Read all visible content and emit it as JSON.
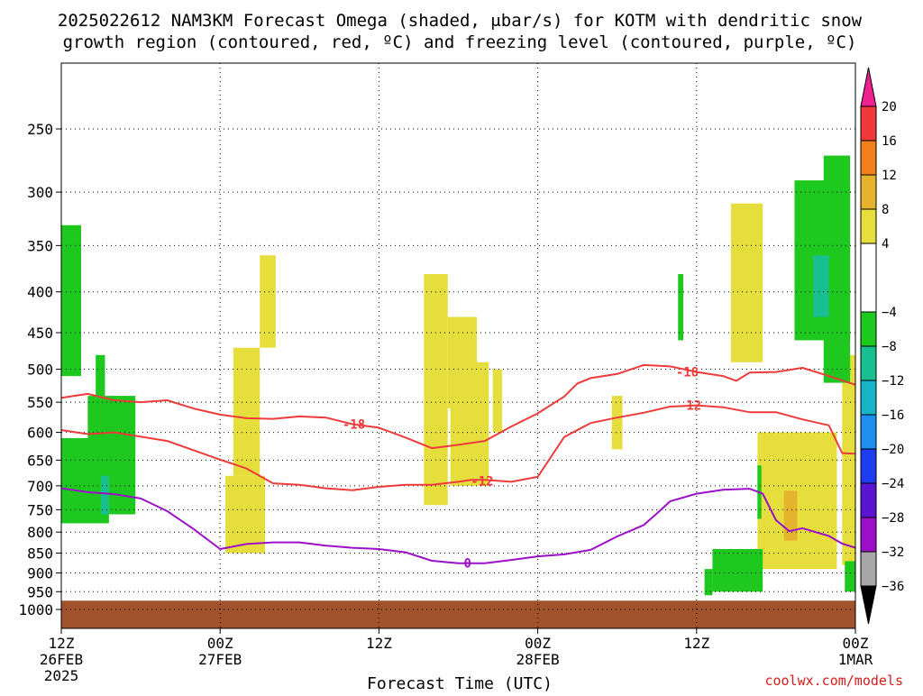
{
  "title": {
    "line1": "2025022612 NAM3KM Forecast Omega (shaded, μbar/s) for KOTM with dendritic snow",
    "line2": "growth region (contoured, red, ºC) and freezing level (contoured, purple, ºC)"
  },
  "credit": "coolwx.com/models",
  "colors": {
    "ground": "#a0522d",
    "temp_contour": "#ee3b3b",
    "freezing_contour": "#9b10c8",
    "grid": "#000000",
    "credit": "#d81b1b"
  },
  "chart_data": {
    "type": "heatmap",
    "title": "2025022612 NAM3KM Forecast Omega (shaded, μbar/s) for KOTM with dendritic snow growth region (contoured, red, ºC) and freezing level (contoured, purple, ºC)",
    "xlabel": "Forecast Time (UTC)",
    "ylabel": "",
    "xlim": [
      0,
      60
    ],
    "ylim": [
      1000,
      200
    ],
    "y_scale": "log-pressure",
    "grid": true,
    "x_ticks": [
      {
        "hour": 0,
        "line1": "12Z",
        "line2": "26FEB",
        "line3": "2025"
      },
      {
        "hour": 12,
        "line1": "00Z",
        "line2": "27FEB",
        "line3": ""
      },
      {
        "hour": 24,
        "line1": "12Z",
        "line2": "",
        "line3": ""
      },
      {
        "hour": 36,
        "line1": "00Z",
        "line2": "28FEB",
        "line3": ""
      },
      {
        "hour": 48,
        "line1": "12Z",
        "line2": "",
        "line3": ""
      },
      {
        "hour": 60,
        "line1": "00Z",
        "line2": "1MAR",
        "line3": ""
      }
    ],
    "y_ticks": [
      250,
      300,
      350,
      400,
      450,
      500,
      550,
      600,
      650,
      700,
      750,
      800,
      850,
      900,
      950,
      1000
    ],
    "colorbar": {
      "labels": [
        "20",
        "16",
        "12",
        "8",
        "4",
        "−4",
        "−8",
        "−12",
        "−16",
        "−20",
        "−24",
        "−28",
        "−32",
        "−36"
      ],
      "segments": [
        {
          "from": 16,
          "to": 20,
          "color": "#f03a3a"
        },
        {
          "from": 12,
          "to": 16,
          "color": "#f07f1c"
        },
        {
          "from": 8,
          "to": 12,
          "color": "#e5b32e"
        },
        {
          "from": 4,
          "to": 8,
          "color": "#e6de3c"
        },
        {
          "from": -4,
          "to": 4,
          "color": "#ffffff"
        },
        {
          "from": -8,
          "to": -4,
          "color": "#1ec81e"
        },
        {
          "from": -12,
          "to": -8,
          "color": "#19bf8f"
        },
        {
          "from": -16,
          "to": -12,
          "color": "#19b3c8"
        },
        {
          "from": -20,
          "to": -16,
          "color": "#1e8ff0"
        },
        {
          "from": -24,
          "to": -20,
          "color": "#1e3cf0"
        },
        {
          "from": -28,
          "to": -24,
          "color": "#5a14d2"
        },
        {
          "from": -32,
          "to": -28,
          "color": "#9b10c8"
        },
        {
          "from": -36,
          "to": -32,
          "color": "#a8a8a8"
        }
      ],
      "top_color": "#f02090",
      "bottom_color": "#000000"
    },
    "contours": [
      {
        "name": "-18",
        "color": "#ee3b3b",
        "label": "-18",
        "labels_at": [
          [
            22.1,
            586
          ],
          [
            47.3,
            504
          ]
        ],
        "points": [
          [
            0,
            543
          ],
          [
            2,
            537
          ],
          [
            4,
            547
          ],
          [
            6,
            550
          ],
          [
            8,
            547
          ],
          [
            10,
            560
          ],
          [
            12,
            570
          ],
          [
            14,
            576
          ],
          [
            16,
            577
          ],
          [
            18,
            573
          ],
          [
            20,
            575
          ],
          [
            22,
            586
          ],
          [
            24,
            592
          ],
          [
            26,
            609
          ],
          [
            28,
            628
          ],
          [
            30,
            622
          ],
          [
            32,
            615
          ],
          [
            34,
            590
          ],
          [
            36,
            568
          ],
          [
            38,
            541
          ],
          [
            39,
            521
          ],
          [
            40,
            513
          ],
          [
            42,
            507
          ],
          [
            44,
            494
          ],
          [
            46,
            496
          ],
          [
            48,
            504
          ],
          [
            50,
            510
          ],
          [
            51,
            517
          ],
          [
            52,
            505
          ],
          [
            54,
            504
          ],
          [
            56,
            498
          ],
          [
            58,
            510
          ],
          [
            60,
            523
          ]
        ]
      },
      {
        "name": "-12",
        "color": "#ee3b3b",
        "label": "-12",
        "labels_at": [
          [
            31.8,
            690
          ],
          [
            47.5,
            555
          ]
        ],
        "points": [
          [
            0,
            596
          ],
          [
            2,
            603
          ],
          [
            4,
            600
          ],
          [
            8,
            615
          ],
          [
            12,
            649
          ],
          [
            14,
            666
          ],
          [
            16,
            695
          ],
          [
            18,
            698
          ],
          [
            20,
            705
          ],
          [
            22,
            709
          ],
          [
            24,
            702
          ],
          [
            26,
            698
          ],
          [
            28,
            698
          ],
          [
            30,
            692
          ],
          [
            31,
            688
          ],
          [
            32,
            688
          ],
          [
            34,
            692
          ],
          [
            36,
            682
          ],
          [
            38,
            608
          ],
          [
            40,
            584
          ],
          [
            42,
            575
          ],
          [
            44,
            567
          ],
          [
            46,
            557
          ],
          [
            48,
            555
          ],
          [
            50,
            558
          ],
          [
            52,
            566
          ],
          [
            54,
            566
          ],
          [
            56,
            578
          ],
          [
            58,
            588
          ],
          [
            59,
            637
          ],
          [
            60,
            638
          ]
        ]
      },
      {
        "name": "0",
        "color": "#9b10c8",
        "label": "0",
        "labels_at": [
          [
            30.7,
            875
          ]
        ],
        "points": [
          [
            0,
            705
          ],
          [
            2,
            713
          ],
          [
            4,
            717
          ],
          [
            6,
            726
          ],
          [
            8,
            753
          ],
          [
            10,
            793
          ],
          [
            12,
            840
          ],
          [
            14,
            828
          ],
          [
            16,
            824
          ],
          [
            18,
            824
          ],
          [
            20,
            832
          ],
          [
            22,
            837
          ],
          [
            24,
            840
          ],
          [
            26,
            848
          ],
          [
            28,
            869
          ],
          [
            30,
            875
          ],
          [
            32,
            875
          ],
          [
            34,
            867
          ],
          [
            36,
            858
          ],
          [
            38,
            853
          ],
          [
            40,
            842
          ],
          [
            42,
            810
          ],
          [
            44,
            784
          ],
          [
            45,
            758
          ],
          [
            46,
            732
          ],
          [
            48,
            716
          ],
          [
            50,
            708
          ],
          [
            52,
            706
          ],
          [
            53,
            716
          ],
          [
            54,
            773
          ],
          [
            55,
            798
          ],
          [
            56,
            791
          ],
          [
            58,
            809
          ],
          [
            59,
            827
          ],
          [
            60,
            837
          ]
        ]
      }
    ],
    "regions": [
      {
        "value": 6,
        "color": "#e6de3c",
        "hours": [
          27.4,
          29.2
        ],
        "pressure": [
          740,
          380
        ]
      },
      {
        "value": 6,
        "color": "#e6de3c",
        "hours": [
          29.2,
          31.4
        ],
        "pressure": [
          560,
          430
        ]
      },
      {
        "value": 6,
        "color": "#e6de3c",
        "hours": [
          29.4,
          32.3
        ],
        "pressure": [
          700,
          490
        ]
      },
      {
        "value": 6,
        "color": "#e6de3c",
        "hours": [
          32.6,
          33.3
        ],
        "pressure": [
          600,
          500
        ]
      },
      {
        "value": 6,
        "color": "#e6de3c",
        "hours": [
          12.4,
          15.4
        ],
        "pressure": [
          850,
          680
        ]
      },
      {
        "value": 6,
        "color": "#e6de3c",
        "hours": [
          13.0,
          15.0
        ],
        "pressure": [
          680,
          470
        ]
      },
      {
        "value": 6,
        "color": "#e6de3c",
        "hours": [
          15.0,
          16.2
        ],
        "pressure": [
          470,
          360
        ]
      },
      {
        "value": 6,
        "color": "#e6de3c",
        "hours": [
          41.6,
          42.4
        ],
        "pressure": [
          630,
          540
        ]
      },
      {
        "value": 6,
        "color": "#e6de3c",
        "hours": [
          50.6,
          53.0
        ],
        "pressure": [
          490,
          310
        ]
      },
      {
        "value": 6,
        "color": "#e6de3c",
        "hours": [
          52.6,
          58.6
        ],
        "pressure": [
          890,
          600
        ]
      },
      {
        "value": 6,
        "color": "#e6de3c",
        "hours": [
          59.0,
          60.0
        ],
        "pressure": [
          880,
          480
        ]
      },
      {
        "value": 10,
        "color": "#e5b32e",
        "hours": [
          54.6,
          55.6
        ],
        "pressure": [
          820,
          710
        ]
      },
      {
        "value": -6,
        "color": "#1ec81e",
        "hours": [
          0.0,
          1.5
        ],
        "pressure": [
          510,
          330
        ]
      },
      {
        "value": -6,
        "color": "#1ec81e",
        "hours": [
          0.0,
          3.6
        ],
        "pressure": [
          780,
          610
        ]
      },
      {
        "value": -6,
        "color": "#1ec81e",
        "hours": [
          2.0,
          5.6
        ],
        "pressure": [
          760,
          540
        ]
      },
      {
        "value": -6,
        "color": "#1ec81e",
        "hours": [
          2.6,
          3.3
        ],
        "pressure": [
          540,
          480
        ]
      },
      {
        "value": -6,
        "color": "#1ec81e",
        "hours": [
          55.4,
          59.6
        ],
        "pressure": [
          460,
          290
        ]
      },
      {
        "value": -6,
        "color": "#1ec81e",
        "hours": [
          57.6,
          59.6
        ],
        "pressure": [
          520,
          270
        ]
      },
      {
        "value": -6,
        "color": "#1ec81e",
        "hours": [
          49.2,
          53.0
        ],
        "pressure": [
          950,
          840
        ]
      },
      {
        "value": -6,
        "color": "#1ec81e",
        "hours": [
          48.6,
          49.2
        ],
        "pressure": [
          960,
          890
        ]
      },
      {
        "value": -6,
        "color": "#1ec81e",
        "hours": [
          59.2,
          60.0
        ],
        "pressure": [
          950,
          870
        ]
      },
      {
        "value": -6,
        "color": "#1ec81e",
        "hours": [
          46.6,
          47.0
        ],
        "pressure": [
          460,
          380
        ]
      },
      {
        "value": -6,
        "color": "#1ec81e",
        "hours": [
          52.6,
          52.9
        ],
        "pressure": [
          770,
          660
        ]
      },
      {
        "value": -10,
        "color": "#19bf8f",
        "hours": [
          56.8,
          58.0
        ],
        "pressure": [
          430,
          360
        ]
      },
      {
        "value": -10,
        "color": "#19bf8f",
        "hours": [
          3.0,
          3.6
        ],
        "pressure": [
          760,
          680
        ]
      }
    ],
    "ground": {
      "pressure_top": 975,
      "pressure_bottom": 1005
    }
  }
}
